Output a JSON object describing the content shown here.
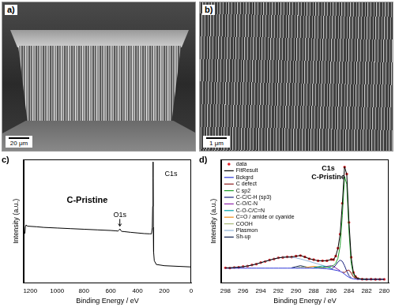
{
  "images": [
    {
      "label": "a)",
      "scale_bar": "20 μm"
    },
    {
      "label": "b)",
      "scale_bar": "1 μm"
    }
  ],
  "chart_data": [
    {
      "type": "line",
      "label": "c)",
      "title": "C-Pristine",
      "x_label": "Binding Energy / eV",
      "y_label": "Intensity (a.u.)",
      "x": [
        1240,
        1236,
        1232,
        1220,
        1150,
        1100,
        1000,
        900,
        800,
        700,
        600,
        560,
        545,
        538,
        532,
        526,
        518,
        500,
        450,
        400,
        350,
        310,
        300,
        295,
        290,
        287,
        285,
        284,
        283,
        282,
        280,
        275,
        260,
        200,
        100,
        0
      ],
      "values": [
        40,
        46,
        47,
        46,
        45.5,
        45,
        44.5,
        44,
        43.5,
        43,
        42.5,
        42.2,
        42,
        42.8,
        43.8,
        42.6,
        41.8,
        41.6,
        41,
        40.5,
        40,
        39.8,
        39.8,
        40.5,
        45,
        62,
        95,
        98,
        85,
        45,
        25,
        18,
        15,
        14,
        13.5,
        13
      ],
      "color": "#000000",
      "xlim": [
        1250,
        0
      ],
      "xticks": [
        1200,
        1000,
        800,
        600,
        400,
        200,
        0
      ],
      "ylim": [
        0,
        100
      ],
      "tick_labels": "x",
      "grid": false,
      "annotations": [
        {
          "text": "O1s",
          "x": 532,
          "y": 55
        },
        {
          "text": "C1s",
          "x": 150,
          "y": 88
        }
      ]
    },
    {
      "type": "line",
      "label": "d)",
      "title": "C1s",
      "subtitle": "C-Pristine",
      "x_label": "Binding Energy / eV",
      "y_label": "Intensity (a.u.)",
      "x": [
        298,
        297.5,
        297,
        296.5,
        296,
        295.5,
        295,
        294.5,
        294,
        293.5,
        293,
        292.5,
        292,
        291.5,
        291,
        290.5,
        290,
        289.5,
        289,
        288.5,
        288,
        287.5,
        287,
        286.5,
        286,
        285.75,
        285.5,
        285.25,
        285,
        284.75,
        284.5,
        284.25,
        284,
        283.75,
        283.5,
        283.25,
        283,
        282.5,
        282,
        281.5,
        281,
        280.5,
        280
      ],
      "series": [
        {
          "name": "data",
          "type": "scatter",
          "marker": "circle",
          "color": "#e3262b",
          "values": [
            12.3,
            12.1,
            12.6,
            12.7,
            13.3,
            13.7,
            14.6,
            15.3,
            16.5,
            17.4,
            18.6,
            19.4,
            20.4,
            20.7,
            21.1,
            21.0,
            21.8,
            22.2,
            21.1,
            19.6,
            18.9,
            17.9,
            18.0,
            18.0,
            19.1,
            18.9,
            21.8,
            28.2,
            39.5,
            64.5,
            93.8,
            88.2,
            49.0,
            20.8,
            8.5,
            5.2,
            3.6,
            3.1,
            3.0,
            3.1,
            2.9,
            3.0,
            3.0
          ]
        },
        {
          "name": "FitResult",
          "line_style": "solid",
          "color": "#000000",
          "values": [
            12.2,
            12.3,
            12.5,
            12.8,
            13.2,
            13.8,
            14.5,
            15.4,
            16.4,
            17.5,
            18.5,
            19.5,
            20.3,
            20.8,
            21,
            21.1,
            21.7,
            22.3,
            21.0,
            19.7,
            18.8,
            18.0,
            17.9,
            18.1,
            19.0,
            18.8,
            21.9,
            28,
            39.7,
            64.3,
            94.1,
            87.9,
            49.3,
            20.6,
            8.6,
            5.1,
            3.7,
            3.1,
            3,
            3,
            3,
            3,
            3
          ]
        },
        {
          "name": "Bckgrd",
          "line_style": "solid",
          "color": "#2b35d6",
          "values": [
            12,
            12,
            12,
            12,
            12,
            12,
            12,
            12,
            12,
            12,
            12,
            12,
            12,
            12,
            12,
            12,
            12,
            12,
            12,
            12,
            12,
            12,
            11.8,
            11.5,
            11,
            10.7,
            10.4,
            10,
            9.4,
            8.5,
            7.2,
            5.8,
            4.6,
            3.8,
            3.4,
            3.2,
            3,
            3,
            3,
            3,
            3,
            3,
            3
          ]
        },
        {
          "name": "C defect",
          "line_style": "solid",
          "color": "#8b1a1a",
          "values": [
            null,
            null,
            null,
            null,
            null,
            null,
            null,
            null,
            null,
            null,
            null,
            null,
            null,
            null,
            null,
            null,
            null,
            null,
            null,
            null,
            null,
            null,
            null,
            null,
            null,
            null,
            null,
            null,
            null,
            8.8,
            8.5,
            10,
            10.5,
            8,
            5,
            3.8,
            3.2,
            null,
            null,
            null,
            null,
            null,
            null
          ]
        },
        {
          "name": "C sp2",
          "line_style": "solid",
          "color": "#1e9e2a",
          "values": [
            null,
            null,
            null,
            null,
            null,
            null,
            null,
            null,
            null,
            null,
            null,
            null,
            null,
            null,
            null,
            null,
            null,
            null,
            null,
            null,
            12.3,
            12.4,
            12.5,
            12.8,
            13.5,
            14.2,
            16,
            20,
            30,
            55,
            86,
            80,
            42,
            16,
            7,
            4.5,
            3.5,
            3.1,
            3,
            null,
            null,
            null,
            null
          ]
        },
        {
          "name": "C-C/C-H (sp3)",
          "line_style": "solid",
          "color": "#1a237e",
          "values": [
            null,
            null,
            null,
            null,
            null,
            null,
            null,
            null,
            null,
            null,
            null,
            null,
            null,
            null,
            null,
            null,
            null,
            null,
            null,
            null,
            null,
            null,
            null,
            null,
            11.5,
            12.5,
            14.5,
            17,
            18.5,
            17.5,
            14,
            9.5,
            6,
            4.2,
            null,
            null,
            null,
            null,
            null,
            null,
            null,
            null,
            null
          ]
        },
        {
          "name": "C-O/C-N",
          "line_style": "solid",
          "color": "#8e24aa",
          "values": [
            null,
            null,
            null,
            null,
            null,
            null,
            null,
            null,
            null,
            null,
            null,
            null,
            null,
            null,
            null,
            null,
            null,
            null,
            null,
            null,
            null,
            null,
            12.3,
            13.5,
            14,
            13.5,
            12.2,
            11,
            10,
            null,
            null,
            null,
            null,
            null,
            null,
            null,
            null,
            null,
            null,
            null,
            null,
            null,
            null
          ]
        },
        {
          "name": "C-O-C/C=N",
          "line_style": "solid",
          "color": "#00a0a8",
          "values": [
            null,
            null,
            null,
            null,
            null,
            null,
            null,
            null,
            null,
            null,
            null,
            null,
            null,
            null,
            null,
            null,
            null,
            null,
            null,
            null,
            12.4,
            13.2,
            13.8,
            13,
            11.8,
            null,
            null,
            null,
            null,
            null,
            null,
            null,
            null,
            null,
            null,
            null,
            null,
            null,
            null,
            null,
            null,
            null,
            null
          ]
        },
        {
          "name": "C=O / amide or cyanide",
          "line_style": "solid",
          "color": "#f08c1a",
          "values": [
            null,
            null,
            null,
            null,
            null,
            null,
            null,
            null,
            null,
            null,
            null,
            null,
            null,
            null,
            null,
            null,
            null,
            null,
            12.3,
            13,
            13.5,
            13,
            12.2,
            null,
            null,
            null,
            null,
            null,
            null,
            null,
            null,
            null,
            null,
            null,
            null,
            null,
            null,
            null,
            null,
            null,
            null,
            null,
            null
          ]
        },
        {
          "name": "COOH",
          "line_style": "solid",
          "color": "#a8b878",
          "values": [
            null,
            null,
            null,
            null,
            null,
            null,
            null,
            null,
            null,
            null,
            null,
            null,
            null,
            null,
            null,
            null,
            12.2,
            12.8,
            13,
            12.8,
            12.2,
            null,
            null,
            null,
            null,
            null,
            null,
            null,
            null,
            null,
            null,
            null,
            null,
            null,
            null,
            null,
            null,
            null,
            null,
            null,
            null,
            null,
            null
          ]
        },
        {
          "name": "Plasmon",
          "line_style": "solid",
          "color": "#8fb4d9",
          "values": [
            12.2,
            12.3,
            12.5,
            12.8,
            13.2,
            13.8,
            14.5,
            15.4,
            16.4,
            17.5,
            18.5,
            19.5,
            20.3,
            20.8,
            21,
            20.8,
            20.3,
            19.5,
            18.5,
            17.5,
            16.4,
            15.4,
            14.3,
            13.3,
            12.2,
            null,
            null,
            null,
            null,
            null,
            null,
            null,
            null,
            null,
            null,
            null,
            null,
            null,
            null,
            null,
            null,
            null,
            null
          ]
        },
        {
          "name": "Sh-up",
          "line_style": "solid",
          "color": "#102050",
          "values": [
            null,
            null,
            null,
            null,
            null,
            null,
            null,
            null,
            null,
            null,
            null,
            null,
            null,
            null,
            null,
            12.3,
            13.2,
            14,
            13.2,
            12.4,
            null,
            null,
            null,
            null,
            null,
            null,
            null,
            null,
            null,
            null,
            null,
            null,
            null,
            null,
            null,
            null,
            null,
            null,
            null,
            null,
            null,
            null,
            null
          ]
        }
      ],
      "xlim": [
        298.5,
        279.5
      ],
      "xticks": [
        298,
        296,
        294,
        292,
        290,
        288,
        286,
        284,
        282,
        280
      ],
      "ylim": [
        0,
        100
      ],
      "tick_labels": "x",
      "grid": false,
      "legend": "upper left"
    }
  ]
}
